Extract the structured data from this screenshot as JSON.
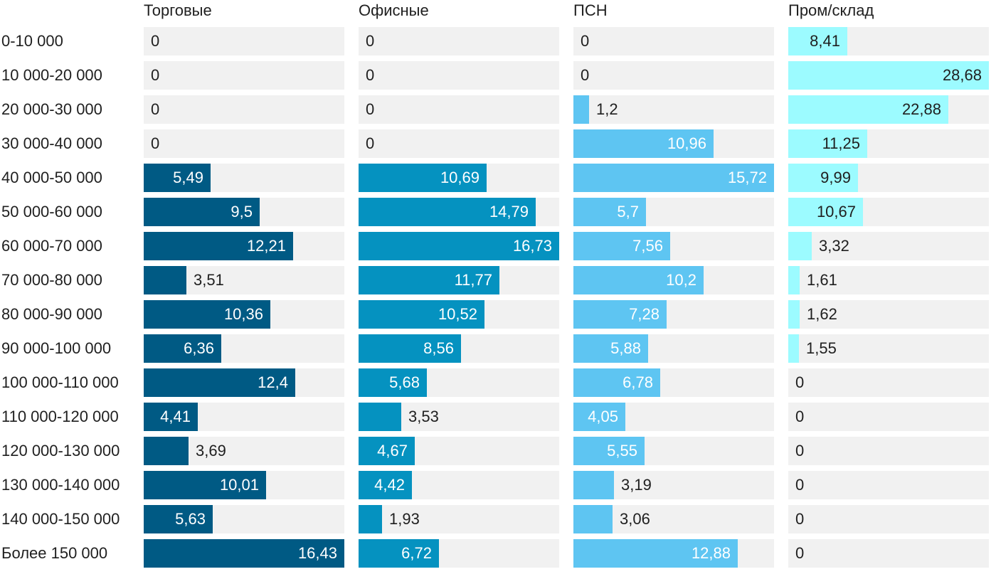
{
  "chart_data": {
    "type": "bar",
    "orientation": "horizontal",
    "layout": "small-multiples",
    "categories": [
      "0-10 000",
      "10 000-20 000",
      "20 000-30 000",
      "30 000-40 000",
      "40 000-50 000",
      "50 000-60 000",
      "60 000-70 000",
      "70 000-80 000",
      "80 000-90 000",
      "90 000-100 000",
      "100 000-110 000",
      "110 000-120 000",
      "120 000-130 000",
      "130 000-140 000",
      "140 000-150 000",
      "Более 150 000"
    ],
    "series": [
      {
        "name": "Торговые",
        "color": "#005a84",
        "max": 16.43,
        "values": [
          0,
          0,
          0,
          0,
          5.49,
          9.5,
          12.21,
          3.51,
          10.36,
          6.36,
          12.4,
          4.41,
          3.69,
          10.01,
          5.63,
          16.43
        ],
        "labels": [
          "0",
          "0",
          "0",
          "0",
          "5,49",
          "9,5",
          "12,21",
          "3,51",
          "10,36",
          "6,36",
          "12,4",
          "4,41",
          "3,69",
          "10,01",
          "5,63",
          "16,43"
        ]
      },
      {
        "name": "Офисные",
        "color": "#0592c0",
        "max": 16.73,
        "values": [
          0,
          0,
          0,
          0,
          10.69,
          14.79,
          16.73,
          11.77,
          10.52,
          8.56,
          5.68,
          3.53,
          4.67,
          4.42,
          1.93,
          6.72
        ],
        "labels": [
          "0",
          "0",
          "0",
          "0",
          "10,69",
          "14,79",
          "16,73",
          "11,77",
          "10,52",
          "8,56",
          "5,68",
          "3,53",
          "4,67",
          "4,42",
          "1,93",
          "6,72"
        ]
      },
      {
        "name": "ПСН",
        "color": "#5ec5f2",
        "max": 15.72,
        "values": [
          0,
          0,
          1.2,
          10.96,
          15.72,
          5.7,
          7.56,
          10.2,
          7.28,
          5.88,
          6.78,
          4.05,
          5.55,
          3.19,
          3.06,
          12.88
        ],
        "labels": [
          "0",
          "0",
          "1,2",
          "10,96",
          "15,72",
          "5,7",
          "7,56",
          "10,2",
          "7,28",
          "5,88",
          "6,78",
          "4,05",
          "5,55",
          "3,19",
          "3,06",
          "12,88"
        ]
      },
      {
        "name": "Пром/склад",
        "color": "#9cfbff",
        "max": 28.68,
        "values": [
          8.41,
          28.68,
          22.88,
          11.25,
          9.99,
          10.67,
          3.32,
          1.61,
          1.62,
          1.55,
          0,
          0,
          0,
          0,
          0,
          0
        ],
        "labels": [
          "8,41",
          "28,68",
          "22,88",
          "11,25",
          "9,99",
          "10,67",
          "3,32",
          "1,61",
          "1,62",
          "1,55",
          "0",
          "0",
          "0",
          "0",
          "0",
          "0"
        ]
      }
    ],
    "track_color": "#f1f1f1",
    "grid": false,
    "legend": "none"
  }
}
